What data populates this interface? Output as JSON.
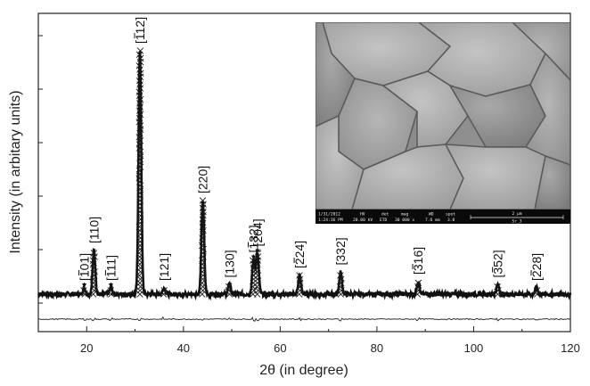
{
  "chart_data": {
    "type": "line",
    "xlabel": "2θ (in degree)",
    "ylabel": "Intensity (in arbitary units)",
    "xlim": [
      10,
      120
    ],
    "ylim": [
      -2,
      100
    ],
    "x_ticks": [
      "20",
      "40",
      "60",
      "80",
      "100",
      "120"
    ],
    "grid": false,
    "legend": "none",
    "series": [
      {
        "name": "",
        "style": "marker-x",
        "baseline": 10,
        "peaks": [
          {
            "x": 19.5,
            "y": 12
          },
          {
            "x": 21.5,
            "y": 24
          },
          {
            "x": 25,
            "y": 12
          },
          {
            "x": 31,
            "y": 88
          },
          {
            "x": 36,
            "y": 12
          },
          {
            "x": 44,
            "y": 40
          },
          {
            "x": 49.5,
            "y": 13
          },
          {
            "x": 54.5,
            "y": 21
          },
          {
            "x": 55.3,
            "y": 23
          },
          {
            "x": 64,
            "y": 16
          },
          {
            "x": 72.5,
            "y": 17
          },
          {
            "x": 88.5,
            "y": 14
          },
          {
            "x": 105,
            "y": 13
          },
          {
            "x": 113,
            "y": 12
          }
        ]
      },
      {
        "name": "",
        "style": "line",
        "baseline": 2
      }
    ],
    "annotations": [
      {
        "text": "[101]",
        "overline": "1",
        "x": 19.5,
        "arrow": true
      },
      {
        "text": "[110]",
        "x": 21.5
      },
      {
        "text": "[111]",
        "overline": "1",
        "x": 25,
        "arrow": true
      },
      {
        "text": "[112]",
        "overline": "1",
        "x": 31
      },
      {
        "text": "[121]",
        "x": 36
      },
      {
        "text": "[220]",
        "x": 44
      },
      {
        "text": "[130]",
        "x": 49.5
      },
      {
        "text": "[132]",
        "overline": "1",
        "x": 54.5,
        "arrow": true
      },
      {
        "text": "[204]",
        "overline": "2",
        "x": 55.3,
        "arrow": true
      },
      {
        "text": "[224]",
        "overline": "2",
        "x": 64
      },
      {
        "text": "[332]",
        "x": 72.5
      },
      {
        "text": "[316]",
        "overline": "3",
        "x": 88.5
      },
      {
        "text": "[352]",
        "overline": "3",
        "x": 105
      },
      {
        "text": "[228]",
        "overline": "2",
        "x": 113
      }
    ]
  },
  "inset": {
    "image": "sem-micrograph",
    "info_bar": {
      "date": "1/31/2012",
      "time": "1:24:36 PM",
      "hv_label": "HV",
      "hv_value": "20.00 kV",
      "det_label": "det",
      "det_value": "ETD",
      "mag_label": "mag",
      "mag_value": "30 000 x",
      "wd_label": "WD",
      "wd_value": "7.6 mm",
      "spot_label": "spot",
      "spot_value": "3.0",
      "scale_label": "2 µm",
      "sample": "Sr_3"
    }
  }
}
